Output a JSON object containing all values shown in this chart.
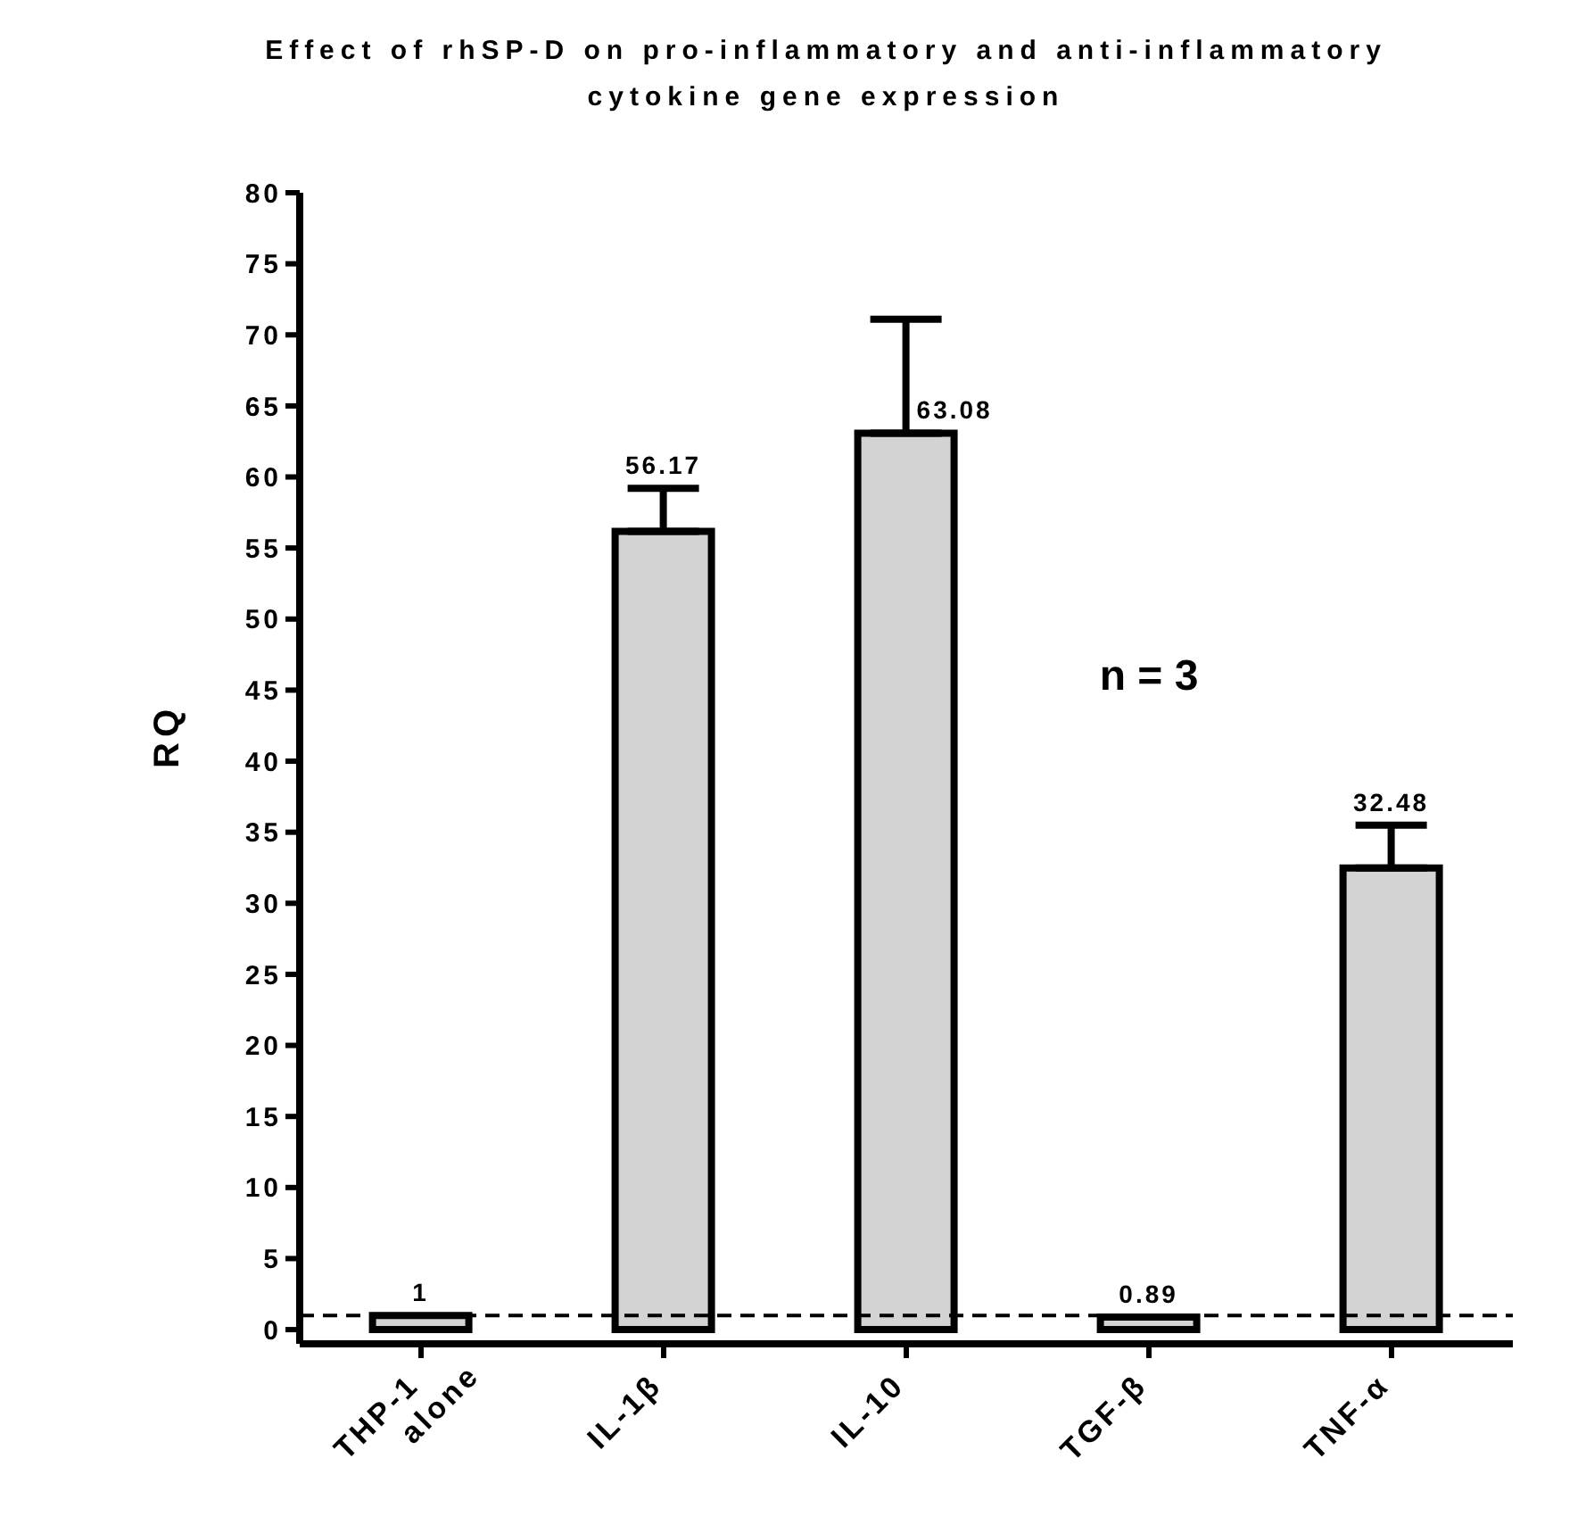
{
  "chart_data": {
    "type": "bar",
    "title": "Effect of rhSP-D on pro-inflammatory and anti-inflammatory cytokine gene expression",
    "ylabel": "RQ",
    "categories": [
      "THP-1 alone",
      "IL-1β",
      "IL-10",
      "TGF-β",
      "TNF-α"
    ],
    "values": [
      1,
      56.17,
      63.08,
      0.89,
      32.48
    ],
    "errors": [
      null,
      [
        56.17,
        59.2
      ],
      [
        63.08,
        71.1
      ],
      null,
      [
        32.48,
        35.5
      ]
    ],
    "color": "#d3d3d3",
    "data_labels": true,
    "ylim": [
      -1,
      80
    ],
    "yticks": [
      0,
      5,
      10,
      15,
      20,
      25,
      30,
      35,
      40,
      45,
      50,
      55,
      60,
      65,
      70,
      75,
      80
    ],
    "ref_lines": [
      {
        "axis": "y",
        "value": 1,
        "line_style": "dashed",
        "color": "#000000"
      }
    ],
    "annotations": [
      "n = 3"
    ]
  }
}
